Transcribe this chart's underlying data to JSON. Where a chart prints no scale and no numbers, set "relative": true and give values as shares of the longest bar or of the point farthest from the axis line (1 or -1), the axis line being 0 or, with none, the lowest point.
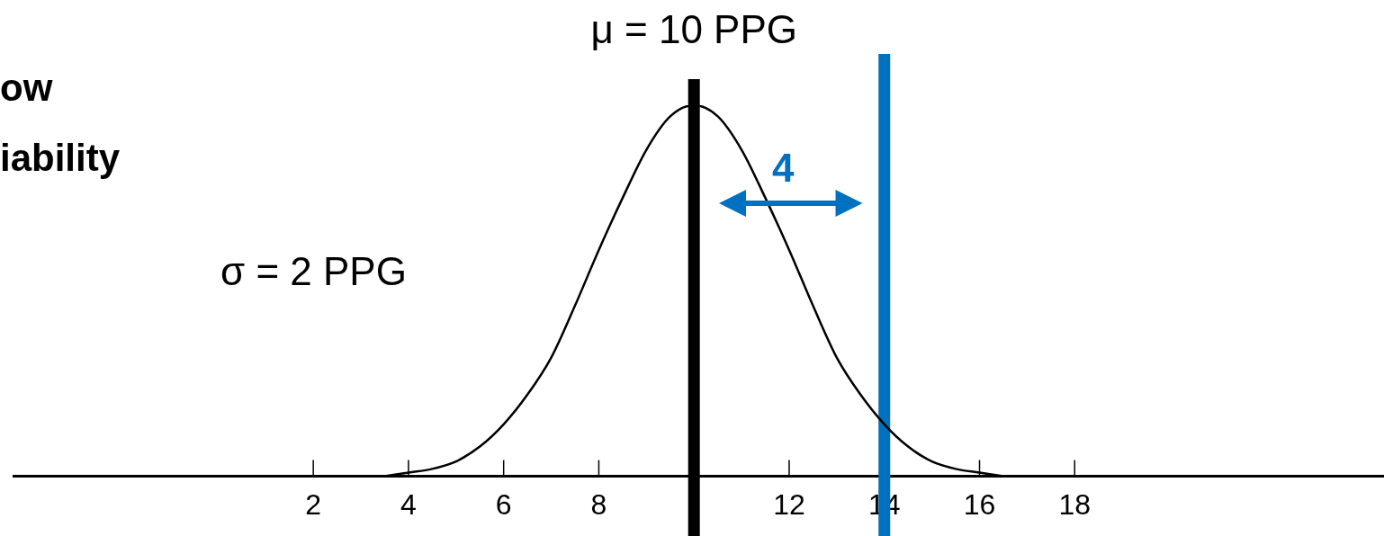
{
  "chart_data": {
    "type": "line",
    "relative": true,
    "annotations": [
      "ow",
      "iability",
      "σ = 2 PPG",
      "4"
    ],
    "x": [
      3.5,
      4,
      4.5,
      5,
      5.5,
      6,
      6.5,
      7,
      7.5,
      8,
      8.5,
      9,
      9.5,
      10,
      10.5,
      11,
      11.5,
      12,
      12.5,
      13,
      13.5,
      14,
      14.5,
      15,
      15.5,
      16,
      16.5
    ],
    "series": [
      {
        "color": "#000000",
        "values": [
          0.0,
          0.01,
          0.02,
          0.04,
          0.08,
          0.14,
          0.22,
          0.32,
          0.46,
          0.61,
          0.75,
          0.88,
          0.97,
          1,
          0.97,
          0.88,
          0.75,
          0.61,
          0.46,
          0.32,
          0.22,
          0.14,
          0.08,
          0.04,
          0.02,
          0.01,
          0.0
        ]
      }
    ],
    "xlim": [
      -4.3,
      24.5
    ],
    "xticks": [
      2,
      4,
      6,
      8,
      12,
      14,
      16,
      18
    ],
    "ref_lines": [
      {
        "axis": "x",
        "value": 10,
        "label": "μ = 10 PPG",
        "color": "#000000"
      },
      {
        "axis": "x",
        "value": 14,
        "color": "#0070c0"
      }
    ],
    "grid": false,
    "legend": false,
    "marker": "none",
    "line_style": "solid"
  }
}
